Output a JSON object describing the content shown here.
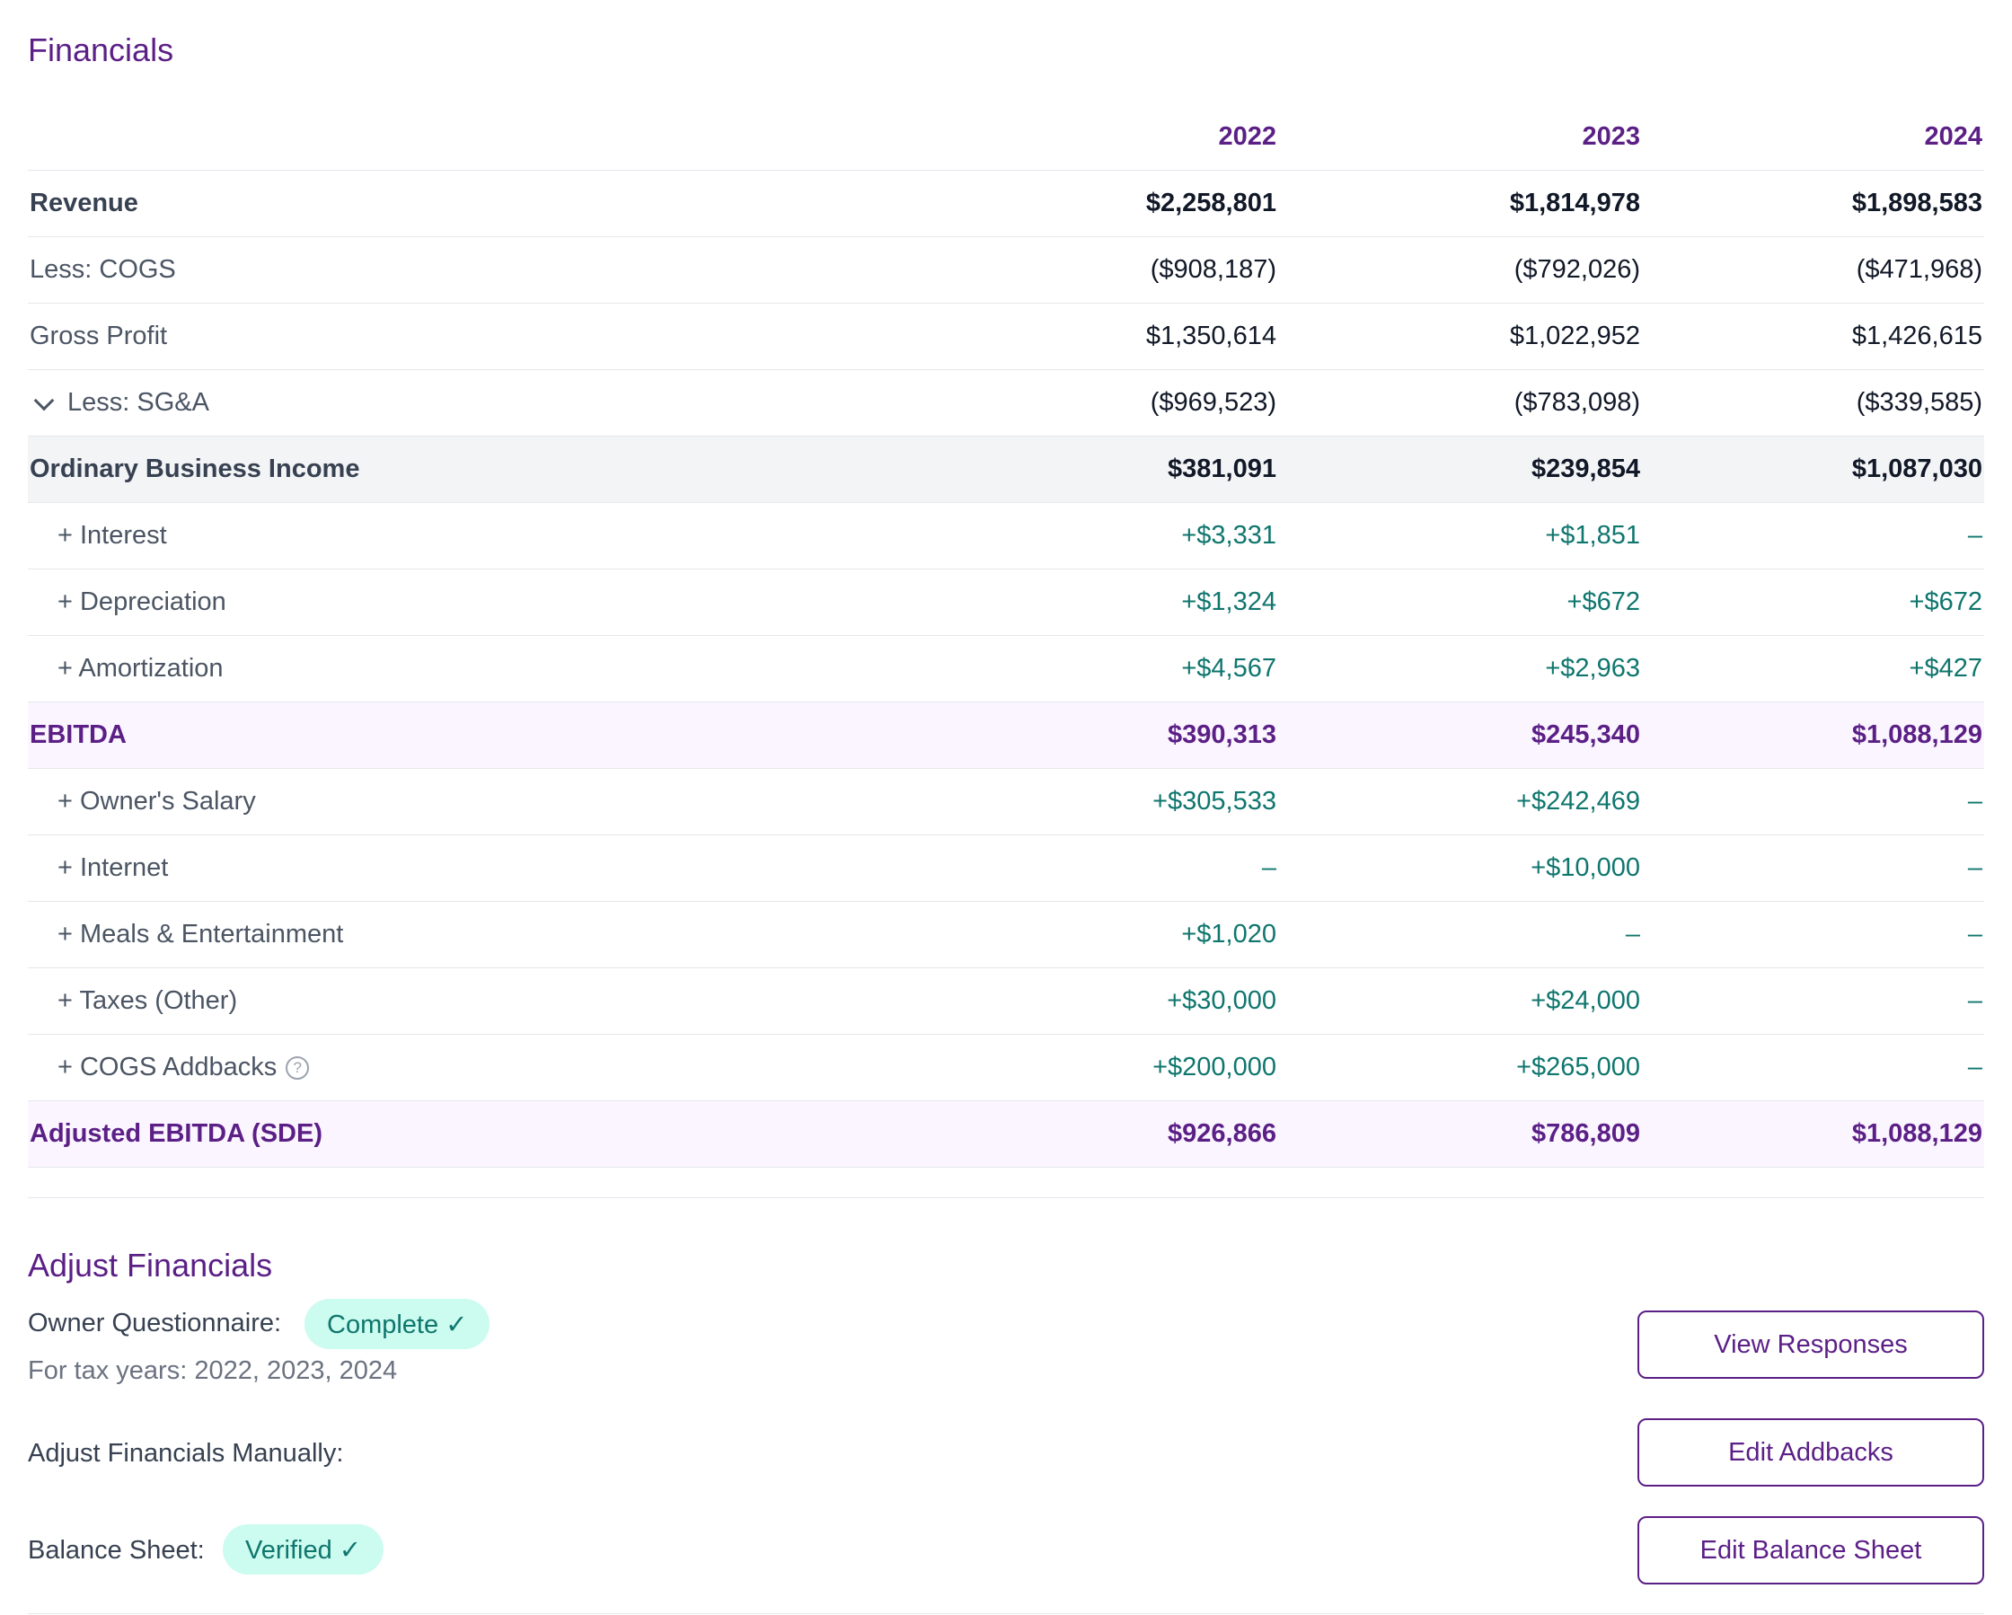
{
  "financials": {
    "title": "Financials",
    "years": [
      "2022",
      "2023",
      "2024"
    ],
    "rows": [
      {
        "label": "Revenue",
        "values": [
          "$2,258,801",
          "$1,814,978",
          "$1,898,583"
        ]
      },
      {
        "label": "Less: COGS",
        "values": [
          "($908,187)",
          "($792,026)",
          "($471,968)"
        ]
      },
      {
        "label": "Gross Profit",
        "values": [
          "$1,350,614",
          "$1,022,952",
          "$1,426,615"
        ]
      },
      {
        "label": "Less: SG&A",
        "values": [
          "($969,523)",
          "($783,098)",
          "($339,585)"
        ]
      },
      {
        "label": "Ordinary Business Income",
        "values": [
          "$381,091",
          "$239,854",
          "$1,087,030"
        ]
      },
      {
        "label": "+ Interest",
        "values": [
          "+$3,331",
          "+$1,851",
          "–"
        ]
      },
      {
        "label": "+ Depreciation",
        "values": [
          "+$1,324",
          "+$672",
          "+$672"
        ]
      },
      {
        "label": "+ Amortization",
        "values": [
          "+$4,567",
          "+$2,963",
          "+$427"
        ]
      },
      {
        "label": "EBITDA",
        "values": [
          "$390,313",
          "$245,340",
          "$1,088,129"
        ]
      },
      {
        "label": "+ Owner's Salary",
        "values": [
          "+$305,533",
          "+$242,469",
          "–"
        ]
      },
      {
        "label": "+ Internet",
        "values": [
          "–",
          "+$10,000",
          "–"
        ]
      },
      {
        "label": "+ Meals & Entertainment",
        "values": [
          "+$1,020",
          "–",
          "–"
        ]
      },
      {
        "label": "+ Taxes (Other)",
        "values": [
          "+$30,000",
          "+$24,000",
          "–"
        ]
      },
      {
        "label": "+ COGS Addbacks",
        "values": [
          "+$200,000",
          "+$265,000",
          "–"
        ]
      },
      {
        "label": "Adjusted EBITDA (SDE)",
        "values": [
          "$926,866",
          "$786,809",
          "$1,088,129"
        ]
      }
    ]
  },
  "adjust": {
    "title": "Adjust Financials",
    "questionnaire_label": "Owner Questionnaire:",
    "questionnaire_status": "Complete ✓",
    "tax_years_text": "For tax years: 2022, 2023, 2024",
    "view_responses_label": "View Responses",
    "manual_label": "Adjust Financials Manually:",
    "edit_addbacks_label": "Edit Addbacks",
    "balance_label": "Balance Sheet:",
    "balance_status": "Verified ✓",
    "edit_balance_label": "Edit Balance Sheet"
  },
  "icons": {
    "collapse": "chevron-down-icon",
    "help": "help-circle-icon",
    "help_glyph": "?"
  },
  "colors": {
    "brand": "#5b1f86",
    "positive": "#0f766e",
    "badge_bg": "#ccfbef"
  }
}
